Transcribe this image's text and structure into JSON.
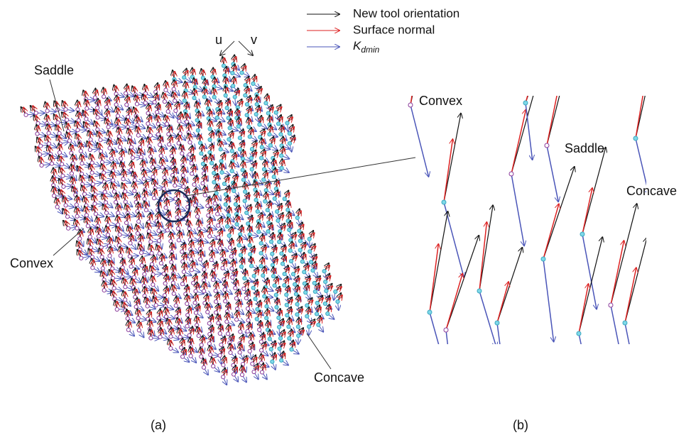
{
  "legend": [
    {
      "label": "New tool orientation"
    },
    {
      "label": "Surface normal"
    },
    {
      "label": "K",
      "subscript": "dmin"
    }
  ],
  "panels": [
    {
      "caption": "(a)",
      "axes": [
        "u",
        "v"
      ],
      "labels": [
        "Saddle",
        "Convex",
        "Concave"
      ]
    },
    {
      "caption": "(b)",
      "labels": [
        "Convex",
        "Saddle",
        "Concave"
      ]
    }
  ]
}
